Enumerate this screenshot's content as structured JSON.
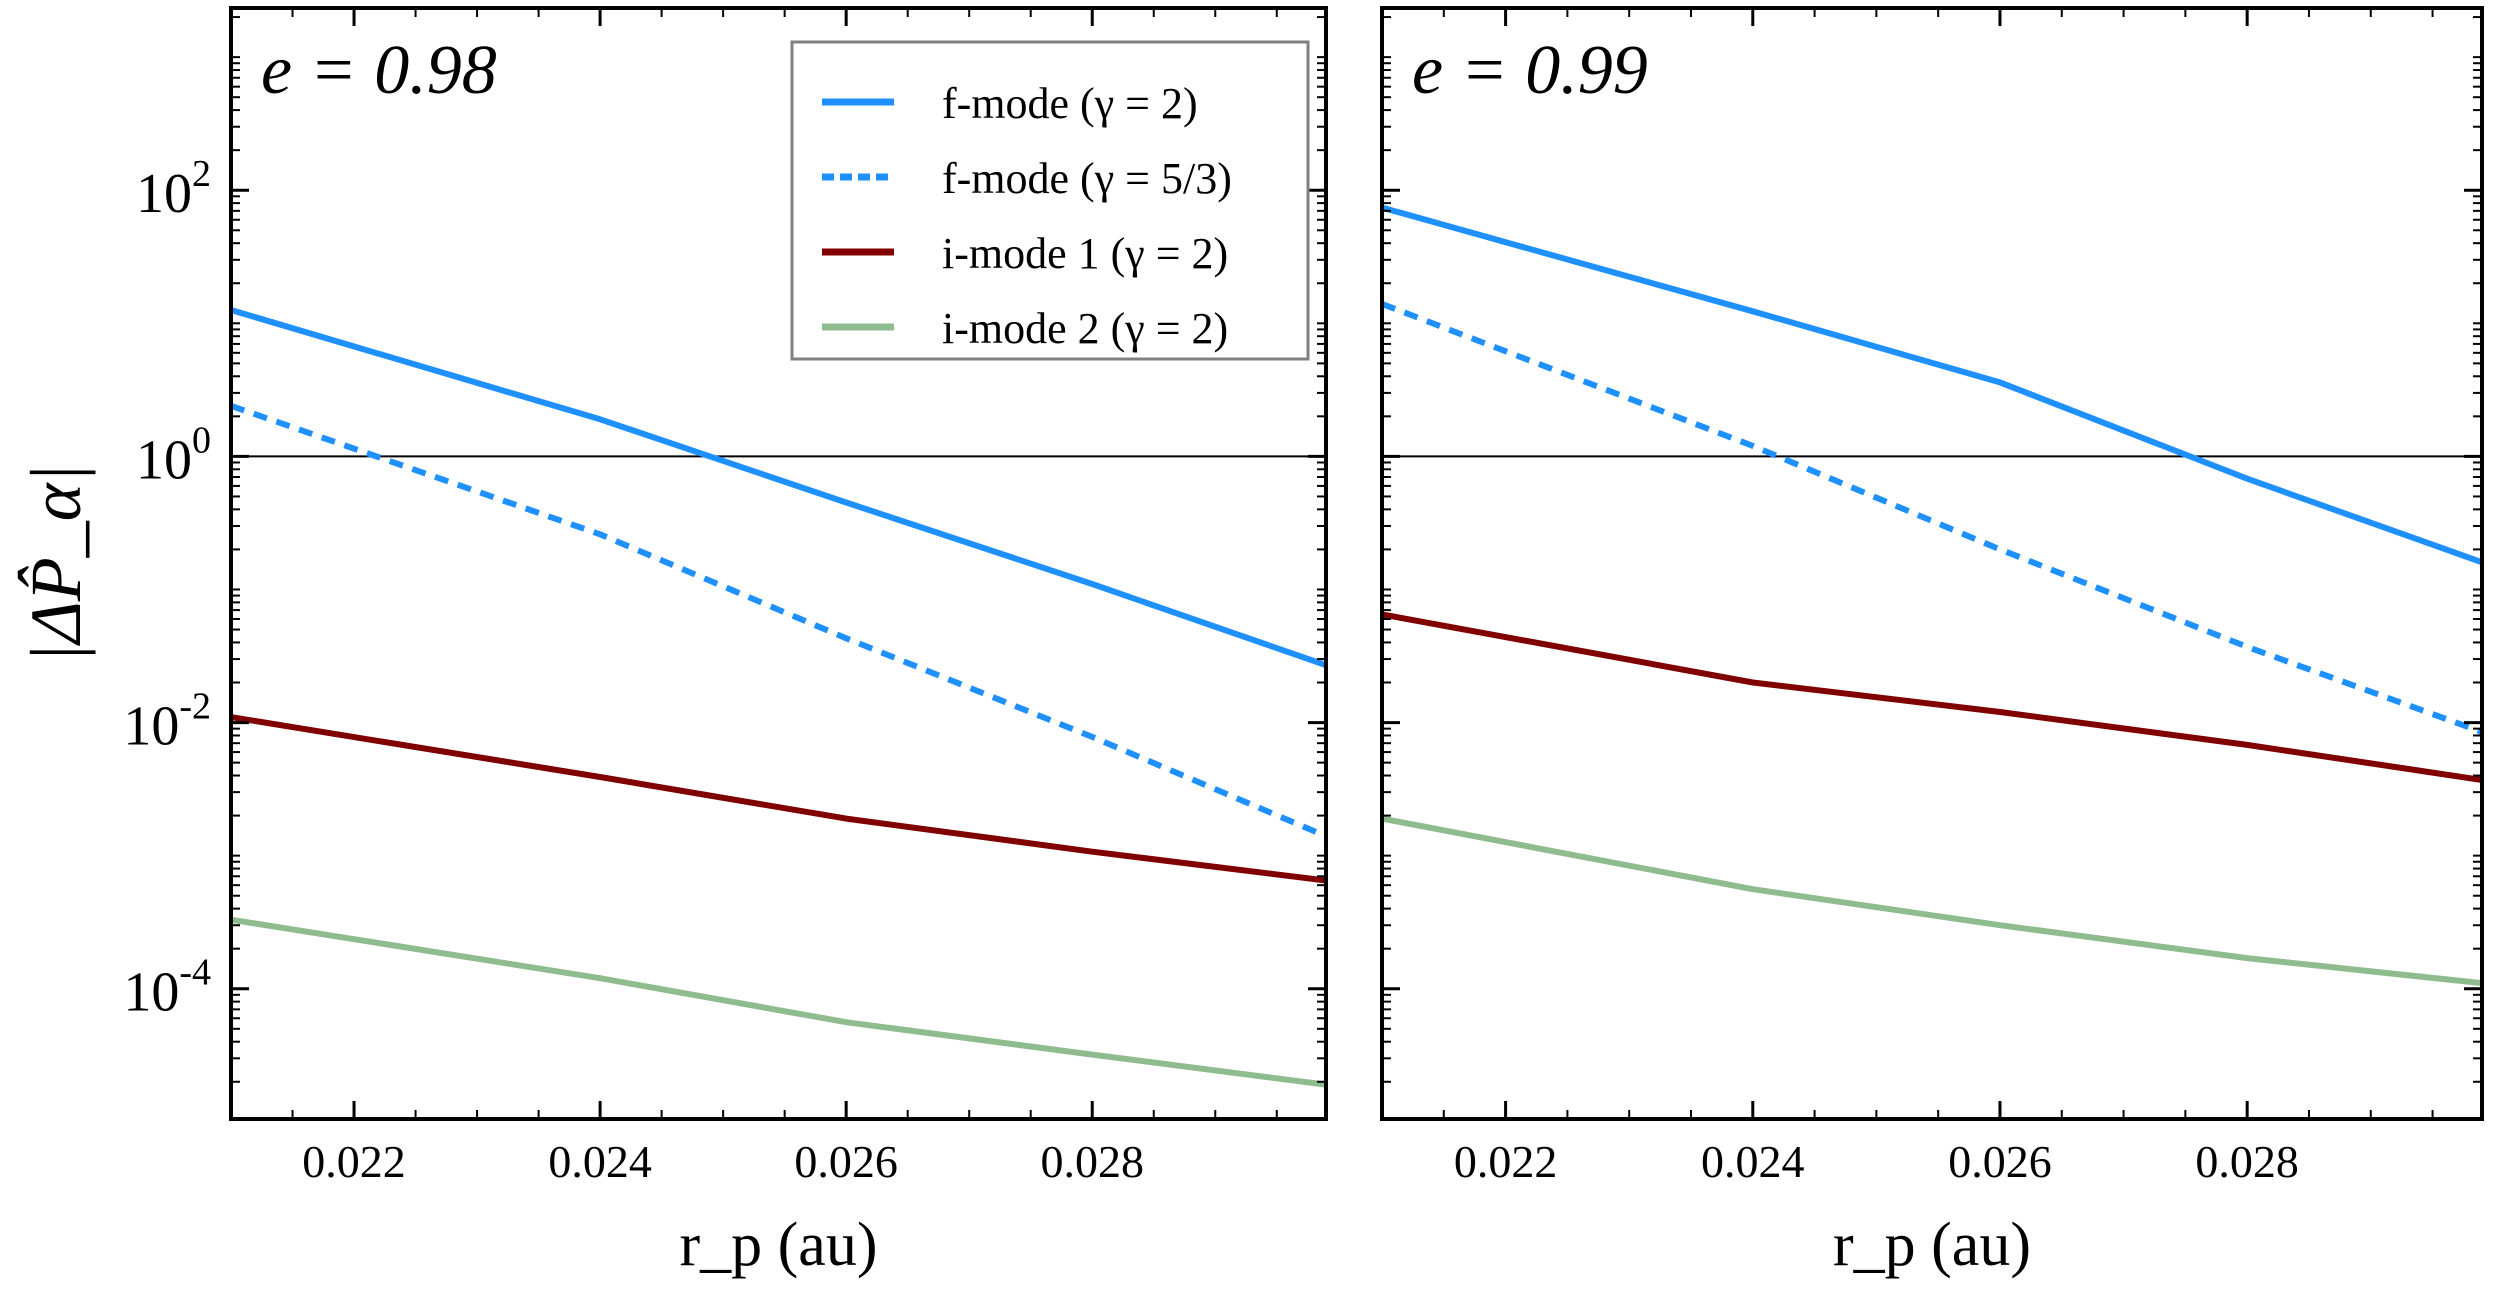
{
  "chart_data": [
    {
      "type": "line",
      "annotation": "e = 0.98",
      "xlabel": "r_p (au)",
      "ylabel": "|ΔP̂_α|",
      "xscale": "linear",
      "yscale": "log",
      "xlim": [
        0.021,
        0.0299
      ],
      "ylim": [
        1.05e-05,
        2340
      ],
      "xticks": [
        0.022,
        0.024,
        0.026,
        0.028
      ],
      "xtick_labels": [
        "0.022",
        "0.024",
        "0.026",
        "0.028"
      ],
      "yticks": [
        0.0001,
        0.01,
        1,
        100
      ],
      "ytick_labels": [
        "10",
        "10",
        "10",
        "10"
      ],
      "ytick_exponents": [
        "-4",
        "-2",
        "0",
        "2"
      ],
      "hline": 1,
      "legend": "top-right",
      "grid": false,
      "series": [
        {
          "name": "f-mode (γ = 2)",
          "color": "#1e90ff",
          "style": "solid",
          "x": [
            0.021,
            0.024,
            0.026,
            0.028,
            0.0299
          ],
          "y": [
            12.6,
            1.9,
            0.45,
            0.11,
            0.027
          ]
        },
        {
          "name": "f-mode (γ = 5/3)",
          "color": "#1e90ff",
          "style": "dotted",
          "x": [
            0.021,
            0.024,
            0.026,
            0.028,
            0.0299
          ],
          "y": [
            2.4,
            0.26,
            0.043,
            0.0078,
            0.0014
          ]
        },
        {
          "name": "i-mode 1 (γ = 2)",
          "color": "#800000",
          "style": "solid",
          "x": [
            0.021,
            0.024,
            0.026,
            0.028,
            0.0299
          ],
          "y": [
            0.011,
            0.0039,
            0.0019,
            0.00107,
            0.00065
          ]
        },
        {
          "name": "i-mode 2 (γ = 2)",
          "color": "#8fbc8f",
          "style": "solid",
          "x": [
            0.021,
            0.024,
            0.026,
            0.028,
            0.0299
          ],
          "y": [
            0.00033,
            0.00012,
            5.6e-05,
            3.2e-05,
            1.9e-05
          ]
        }
      ]
    },
    {
      "type": "line",
      "annotation": "e = 0.99",
      "xlabel": "r_p (au)",
      "xscale": "linear",
      "yscale": "log",
      "xlim": [
        0.021,
        0.0299
      ],
      "ylim": [
        1.05e-05,
        2340
      ],
      "xticks": [
        0.022,
        0.024,
        0.026,
        0.028
      ],
      "xtick_labels": [
        "0.022",
        "0.024",
        "0.026",
        "0.028"
      ],
      "hline": 1,
      "grid": false,
      "series": [
        {
          "color": "#1e90ff",
          "style": "solid",
          "x": [
            0.021,
            0.024,
            0.026,
            0.028,
            0.0299
          ],
          "y": [
            74,
            12.3,
            3.6,
            0.68,
            0.16
          ]
        },
        {
          "color": "#1e90ff",
          "style": "dotted",
          "x": [
            0.021,
            0.024,
            0.026,
            0.028,
            0.0299
          ],
          "y": [
            14,
            1.2,
            0.2,
            0.037,
            0.0085
          ]
        },
        {
          "color": "#800000",
          "style": "solid",
          "x": [
            0.021,
            0.024,
            0.026,
            0.028,
            0.0299
          ],
          "y": [
            0.065,
            0.02,
            0.012,
            0.0068,
            0.0037
          ]
        },
        {
          "color": "#8fbc8f",
          "style": "solid",
          "x": [
            0.021,
            0.024,
            0.026,
            0.028,
            0.0299
          ],
          "y": [
            0.0019,
            0.00056,
            0.0003,
            0.00017,
            0.00011
          ]
        }
      ]
    }
  ]
}
